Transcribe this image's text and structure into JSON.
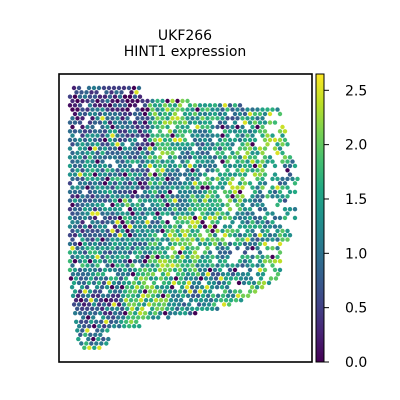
{
  "chart_data": {
    "type": "scatter",
    "title": "UKF266",
    "subtitle": "HINT1 expression",
    "xlabel": "",
    "ylabel": "",
    "grid": false,
    "legend": "colorbar-right",
    "colormap": "viridis",
    "colorbar": {
      "range": [
        0.0,
        2.65
      ],
      "ticks": [
        0.0,
        0.5,
        1.0,
        1.5,
        2.0,
        2.5
      ],
      "tick_labels": [
        "0.0",
        "0.5",
        "1.0",
        "1.5",
        "2.0",
        "2.5"
      ]
    },
    "spot_layout": "hexagonal grid of spatial spots, value = HINT1 expression",
    "value_range": [
      0.0,
      2.65
    ]
  },
  "colors": {
    "frame": "#000000",
    "background": "#ffffff",
    "viridis_low": "#440154",
    "viridis_mid": "#21918c",
    "viridis_high": "#fde725"
  }
}
